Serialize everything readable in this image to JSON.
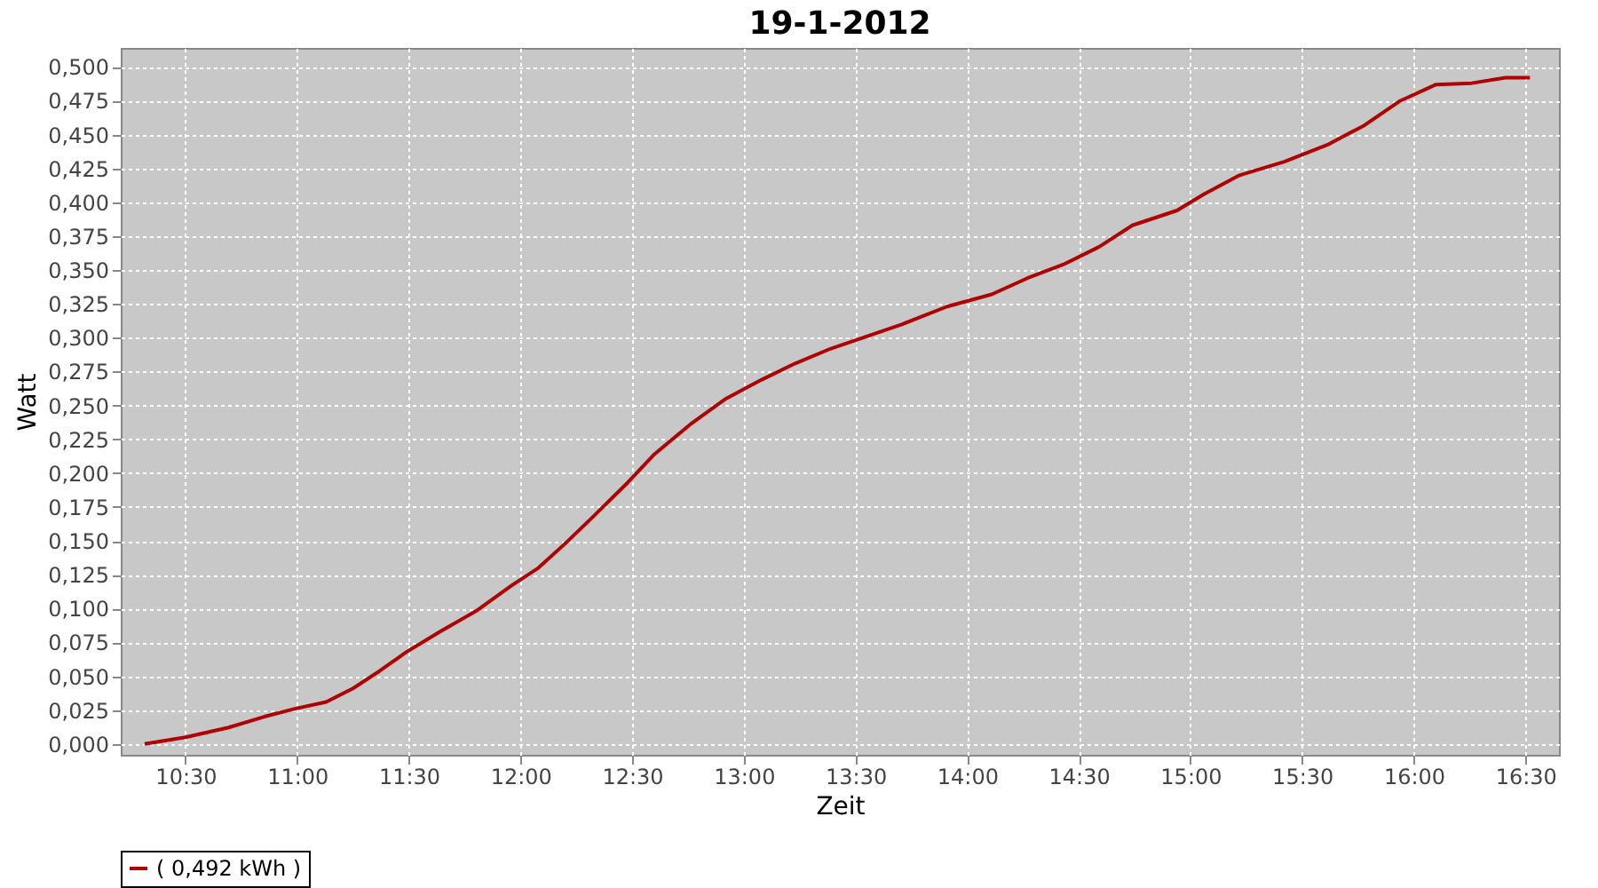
{
  "chart_data": {
    "type": "line",
    "title": "19-1-2012",
    "xlabel": "Zeit",
    "ylabel": "Watt",
    "xlim": [
      10.21,
      16.65
    ],
    "ylim": [
      -0.008,
      0.514
    ],
    "xticks": [
      {
        "value": 10.5,
        "label": "10:30"
      },
      {
        "value": 11,
        "label": "11:00"
      },
      {
        "value": 11.5,
        "label": "11:30"
      },
      {
        "value": 12,
        "label": "12:00"
      },
      {
        "value": 12.5,
        "label": "12:30"
      },
      {
        "value": 13,
        "label": "13:00"
      },
      {
        "value": 13.5,
        "label": "13:30"
      },
      {
        "value": 14,
        "label": "14:00"
      },
      {
        "value": 14.5,
        "label": "14:30"
      },
      {
        "value": 15,
        "label": "15:00"
      },
      {
        "value": 15.5,
        "label": "15:30"
      },
      {
        "value": 16,
        "label": "16:00"
      },
      {
        "value": 16.5,
        "label": "16:30"
      }
    ],
    "yticks": [
      {
        "value": 0,
        "label": "0,000"
      },
      {
        "value": 0.025,
        "label": "0,025"
      },
      {
        "value": 0.05,
        "label": "0,050"
      },
      {
        "value": 0.075,
        "label": "0,075"
      },
      {
        "value": 0.1,
        "label": "0,100"
      },
      {
        "value": 0.125,
        "label": "0,125"
      },
      {
        "value": 0.15,
        "label": "0,150"
      },
      {
        "value": 0.175,
        "label": "0,175"
      },
      {
        "value": 0.2,
        "label": "0,200"
      },
      {
        "value": 0.225,
        "label": "0,225"
      },
      {
        "value": 0.25,
        "label": "0,250"
      },
      {
        "value": 0.275,
        "label": "0,275"
      },
      {
        "value": 0.3,
        "label": "0,300"
      },
      {
        "value": 0.325,
        "label": "0,325"
      },
      {
        "value": 0.35,
        "label": "0,350"
      },
      {
        "value": 0.375,
        "label": "0,375"
      },
      {
        "value": 0.4,
        "label": "0,400"
      },
      {
        "value": 0.425,
        "label": "0,425"
      },
      {
        "value": 0.45,
        "label": "0,450"
      },
      {
        "value": 0.475,
        "label": "0,475"
      },
      {
        "value": 0.5,
        "label": "0,500"
      }
    ],
    "grid": true,
    "legend": "bottom",
    "x": [
      10.317,
      10.5,
      10.69,
      10.85,
      10.99,
      11.13,
      11.25,
      11.37,
      11.49,
      11.64,
      11.8,
      11.96,
      12.08,
      12.2,
      12.32,
      12.48,
      12.6,
      12.76,
      12.92,
      13.08,
      13.23,
      13.39,
      13.55,
      13.71,
      13.91,
      14.11,
      14.27,
      14.43,
      14.59,
      14.74,
      14.94,
      15.06,
      15.22,
      15.42,
      15.62,
      15.78,
      15.94,
      16.1,
      16.26,
      16.41,
      16.52
    ],
    "series": [
      {
        "name": "( 0,492 kWh )",
        "color": "#b00000",
        "values": [
          0,
          0.005,
          0.012,
          0.02,
          0.026,
          0.031,
          0.041,
          0.054,
          0.068,
          0.083,
          0.098,
          0.117,
          0.13,
          0.148,
          0.167,
          0.193,
          0.214,
          0.236,
          0.255,
          0.269,
          0.281,
          0.292,
          0.301,
          0.31,
          0.323,
          0.332,
          0.344,
          0.354,
          0.367,
          0.383,
          0.394,
          0.406,
          0.42,
          0.43,
          0.443,
          0.457,
          0.475,
          0.487,
          0.488,
          0.492,
          0.492
        ]
      }
    ]
  }
}
